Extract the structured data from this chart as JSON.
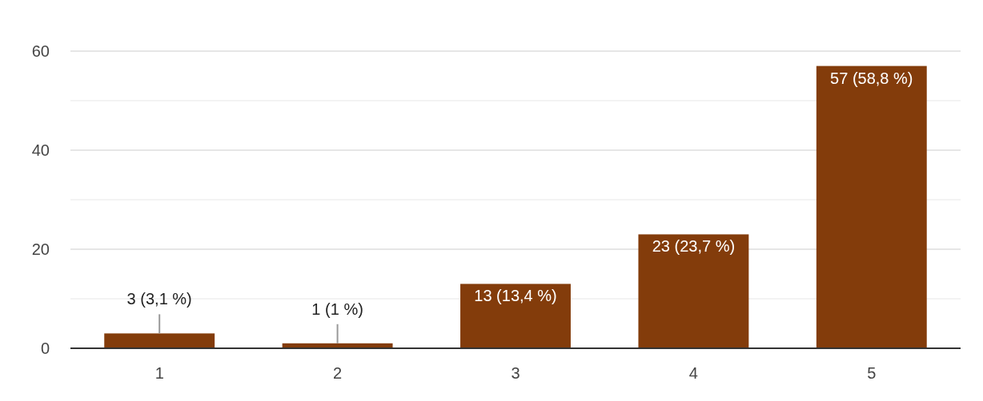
{
  "chart_data": {
    "type": "bar",
    "categories": [
      "1",
      "2",
      "3",
      "4",
      "5"
    ],
    "values": [
      3,
      1,
      13,
      23,
      57
    ],
    "value_labels": [
      "3 (3,1 %)",
      "1 (1 %)",
      "13 (13,4 %)",
      "23 (23,7 %)",
      "57 (58,8 %)"
    ],
    "color": "#833c0b",
    "ylim": [
      0,
      60
    ],
    "yticks": [
      0,
      {
        "value": 10,
        "label": null
      },
      20,
      {
        "value": 30,
        "label": null
      },
      40,
      {
        "value": 50,
        "label": null
      },
      60
    ],
    "grid": "y"
  }
}
